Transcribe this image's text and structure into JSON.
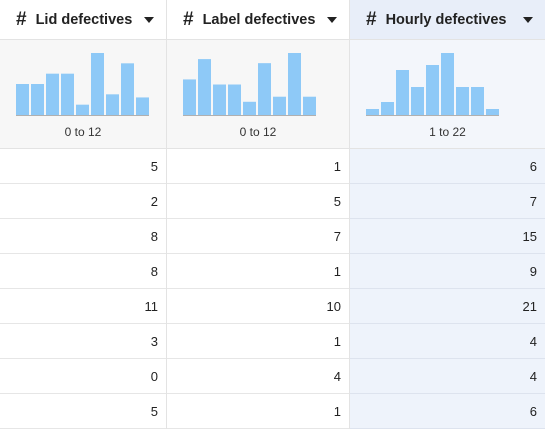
{
  "columns": [
    {
      "title": "Lid defectives",
      "type_icon": "hash-icon",
      "range": "0 to 12",
      "histogram": [
        3,
        3,
        4,
        4,
        1,
        6,
        2,
        5,
        1.7
      ],
      "values": [
        "5",
        "2",
        "8",
        "8",
        "11",
        "3",
        "0",
        "5"
      ],
      "selected": false
    },
    {
      "title": "Label defectives",
      "type_icon": "hash-icon",
      "range": "0 to 12",
      "histogram": [
        3.5,
        5.5,
        3,
        3,
        1.3,
        5.1,
        1.8,
        6.1,
        1.8
      ],
      "values": [
        "1",
        "5",
        "7",
        "1",
        "10",
        "1",
        "4",
        "1"
      ],
      "selected": false
    },
    {
      "title": "Hourly defectives",
      "type_icon": "hash-icon",
      "range": "1 to 22",
      "histogram": [
        0.6,
        1.3,
        4.5,
        2.8,
        5,
        6.2,
        2.8,
        2.8,
        0.6
      ],
      "values": [
        "6",
        "7",
        "15",
        "9",
        "21",
        "4",
        "4",
        "6"
      ],
      "selected": true
    }
  ],
  "colors": {
    "bar": "#8ec9f7",
    "baseline": "#b0b0b0",
    "selected_bg": "#eef3fb"
  }
}
